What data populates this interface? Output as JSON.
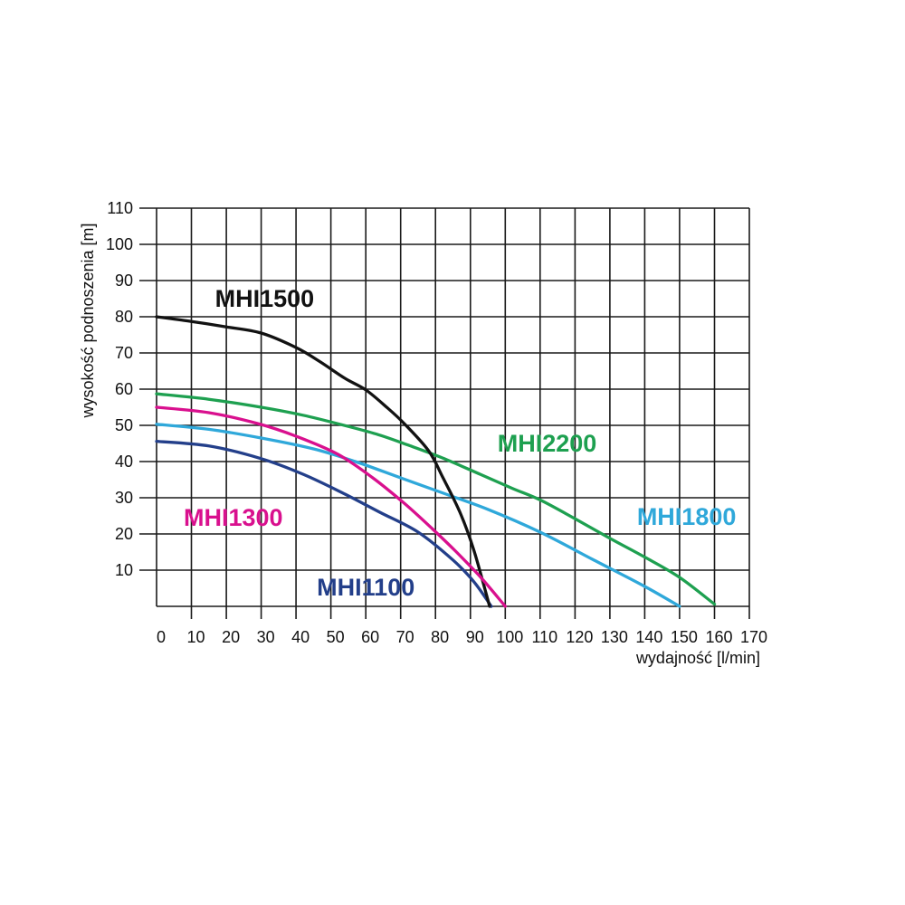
{
  "page": {
    "background": "#ffffff",
    "description": "Pump performance curves chart (head vs flow) for MHI series pumps"
  },
  "chart_data": {
    "type": "line",
    "title": "",
    "xlabel": "wydajność [l/min]",
    "ylabel": "wysokość podnoszenia [m]",
    "xlim": [
      0,
      170
    ],
    "ylim": [
      0,
      110
    ],
    "grid": true,
    "grid_color": "#1a1a1a",
    "tick_label_color": "#111111",
    "axis_title_color": "#111111",
    "x_ticks": [
      0,
      10,
      20,
      30,
      40,
      50,
      60,
      70,
      80,
      90,
      100,
      110,
      120,
      130,
      140,
      150,
      160,
      170
    ],
    "y_ticks": [
      0,
      10,
      20,
      30,
      40,
      50,
      60,
      70,
      80,
      90,
      100,
      110
    ],
    "y_tick_labels": [
      "",
      "10",
      "20",
      "30",
      "40",
      "50",
      "60",
      "70",
      "80",
      "90",
      "100",
      "110"
    ],
    "legend_position": "labels-on-plot",
    "series": [
      {
        "name": "MHI2200",
        "color": "#1ea050",
        "label_pos": {
          "x": 112,
          "y": 45
        },
        "points": [
          [
            0,
            58.7
          ],
          [
            15,
            57.2
          ],
          [
            30,
            55
          ],
          [
            42,
            52.8
          ],
          [
            53,
            50.2
          ],
          [
            63,
            47.6
          ],
          [
            72,
            44.6
          ],
          [
            82,
            41
          ],
          [
            93,
            36.4
          ],
          [
            102,
            32.6
          ],
          [
            110,
            29.4
          ],
          [
            120,
            24.2
          ],
          [
            130,
            18.8
          ],
          [
            140,
            13.6
          ],
          [
            150,
            8
          ],
          [
            160,
            0.6
          ]
        ]
      },
      {
        "name": "MHI1800",
        "color": "#2fa8da",
        "label_pos": {
          "x": 152,
          "y": 24.8
        },
        "points": [
          [
            0,
            50.3
          ],
          [
            15,
            48.9
          ],
          [
            30,
            46.5
          ],
          [
            45,
            43.5
          ],
          [
            57,
            40
          ],
          [
            70,
            35.5
          ],
          [
            83,
            31
          ],
          [
            95,
            26.8
          ],
          [
            110,
            20.5
          ],
          [
            125,
            13
          ],
          [
            140,
            5.5
          ],
          [
            150,
            0
          ]
        ]
      },
      {
        "name": "MHI1100",
        "color": "#233f8a",
        "label_pos": {
          "x": 60,
          "y": 5.2
        },
        "points": [
          [
            0,
            45.6
          ],
          [
            15,
            44.3
          ],
          [
            30,
            40.8
          ],
          [
            42,
            36.5
          ],
          [
            53,
            31.5
          ],
          [
            64,
            26
          ],
          [
            75,
            20.5
          ],
          [
            85,
            12.8
          ],
          [
            91,
            6.8
          ],
          [
            96,
            0
          ]
        ]
      },
      {
        "name": "MHI1500",
        "color": "#121212",
        "label_pos": {
          "x": 31,
          "y": 85
        },
        "points": [
          [
            0,
            80
          ],
          [
            10,
            78.7
          ],
          [
            20,
            77.2
          ],
          [
            30,
            75.5
          ],
          [
            40,
            71.5
          ],
          [
            47,
            67.5
          ],
          [
            54,
            63
          ],
          [
            60,
            59.8
          ],
          [
            66,
            55
          ],
          [
            71,
            50.5
          ],
          [
            78,
            43
          ],
          [
            82,
            35.8
          ],
          [
            87,
            26
          ],
          [
            91,
            15.5
          ],
          [
            95.5,
            0
          ]
        ]
      },
      {
        "name": "MHI1300",
        "color": "#d9108e",
        "label_pos": {
          "x": 22,
          "y": 24.5
        },
        "points": [
          [
            0,
            55
          ],
          [
            15,
            53.5
          ],
          [
            29,
            50.5
          ],
          [
            40,
            47
          ],
          [
            52,
            42
          ],
          [
            62,
            35.5
          ],
          [
            71,
            28.5
          ],
          [
            79,
            21.5
          ],
          [
            86,
            15
          ],
          [
            93,
            8
          ],
          [
            100,
            0
          ]
        ]
      }
    ]
  }
}
